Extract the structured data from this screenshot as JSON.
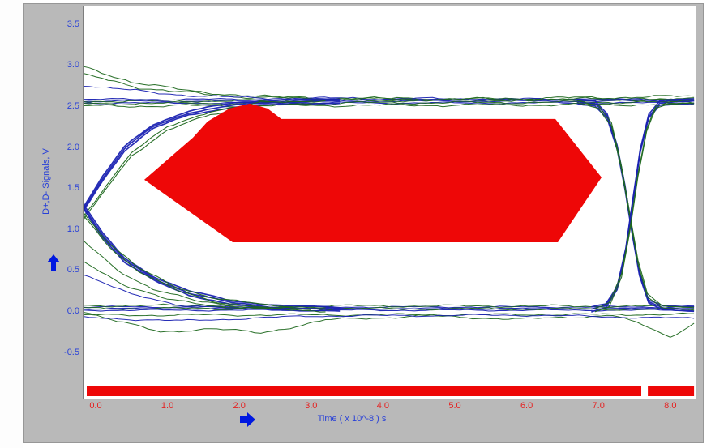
{
  "window": {
    "bg": "#ffffff",
    "panel_bg": "#b9b9b9"
  },
  "chart_data": {
    "type": "eye-diagram",
    "xlabel": "Time  ( x 10^-8 ) s",
    "ylabel": "D+,D- Signals, V",
    "x_tick_labels": [
      "0.0",
      "1.0",
      "2.0",
      "3.0",
      "4.0",
      "5.0",
      "6.0",
      "7.0",
      "8.0"
    ],
    "x_tick_values": [
      0,
      1,
      2,
      3,
      4,
      5,
      6,
      7,
      8
    ],
    "y_tick_labels": [
      "3.5",
      "3.0",
      "2.5",
      "2.0",
      "1.5",
      "1.0",
      "0.5",
      "0.0",
      "-0.5"
    ],
    "y_tick_values": [
      3.5,
      3.0,
      2.5,
      2.0,
      1.5,
      1.0,
      0.5,
      0.0,
      -0.5
    ],
    "xlim": [
      -0.169,
      8.352
    ],
    "ylim": [
      -1.058,
      3.715
    ],
    "x_unit": "x 10^-8 s",
    "y_unit": "V",
    "signal_levels": {
      "high_V": 2.55,
      "low_V": 0.0,
      "crossing_left_V": 1.25,
      "crossing_right_t": 7.4
    },
    "colors": {
      "trace_blue": "#1a22b2",
      "trace_green": "#1d681d",
      "mask": "#ee0707",
      "bar": "#ee0707",
      "tick_blue": "#2840d8",
      "tick_red": "#e62020",
      "arrow": "#0018e0"
    },
    "mask_polygon": [
      [
        0.677,
        1.601
      ],
      [
        1.355,
        2.115
      ],
      [
        1.558,
        2.312
      ],
      [
        1.863,
        2.471
      ],
      [
        2.145,
        2.53
      ],
      [
        2.393,
        2.471
      ],
      [
        2.585,
        2.342
      ],
      [
        6.4,
        2.342
      ],
      [
        7.043,
        1.63
      ],
      [
        6.434,
        0.839
      ],
      [
        1.908,
        0.839
      ]
    ],
    "mask_bar": {
      "v_top": -0.92,
      "v_bottom": -1.039,
      "segments": [
        [
          -0.124,
          7.596
        ],
        [
          7.687,
          8.33
        ]
      ]
    },
    "traces": [
      {
        "color": "blue",
        "w": 1.1,
        "amp": 1.4,
        "seed": 1,
        "copies": 3,
        "spread": 2.2,
        "pts": [
          [
            -0.17,
            2.56
          ],
          [
            8.33,
            2.56
          ]
        ]
      },
      {
        "color": "green",
        "w": 1.0,
        "amp": 2.2,
        "seed": 2,
        "copies": 3,
        "spread": 3.0,
        "pts": [
          [
            -0.17,
            2.53
          ],
          [
            8.33,
            2.55
          ]
        ]
      },
      {
        "color": "green",
        "w": 1.0,
        "amp": 2.6,
        "seed": 3,
        "copies": 1,
        "spread": 0,
        "pts": [
          [
            -0.17,
            2.88
          ],
          [
            0.6,
            2.73
          ],
          [
            1.6,
            2.63
          ],
          [
            3.0,
            2.59
          ],
          [
            8.33,
            2.58
          ]
        ]
      },
      {
        "color": "blue",
        "w": 1.0,
        "amp": 2.2,
        "seed": 4,
        "copies": 1,
        "spread": 0,
        "pts": [
          [
            -0.17,
            2.76
          ],
          [
            0.8,
            2.66
          ],
          [
            2.0,
            2.6
          ],
          [
            8.33,
            2.57
          ]
        ]
      },
      {
        "color": "green",
        "w": 1.0,
        "amp": 2.4,
        "seed": 5,
        "copies": 1,
        "spread": 0,
        "pts": [
          [
            -0.17,
            2.97
          ],
          [
            0.5,
            2.8
          ],
          [
            1.3,
            2.68
          ],
          [
            2.6,
            2.6
          ],
          [
            5.0,
            2.58
          ],
          [
            8.33,
            2.62
          ]
        ]
      },
      {
        "color": "blue",
        "w": 1.1,
        "amp": 1.3,
        "seed": 6,
        "copies": 3,
        "spread": 2.0,
        "pts": [
          [
            -0.17,
            0.03
          ],
          [
            8.33,
            0.03
          ]
        ]
      },
      {
        "color": "green",
        "w": 1.0,
        "amp": 2.0,
        "seed": 7,
        "copies": 2,
        "spread": 3.5,
        "pts": [
          [
            -0.17,
            0.05
          ],
          [
            8.33,
            0.04
          ]
        ]
      },
      {
        "color": "green",
        "w": 1.0,
        "amp": 1.8,
        "seed": 8,
        "copies": 1,
        "spread": 0,
        "pts": [
          [
            -0.17,
            -0.05
          ],
          [
            8.33,
            -0.04
          ]
        ]
      },
      {
        "color": "green",
        "w": 1.0,
        "amp": 2.0,
        "seed": 9,
        "copies": 1,
        "spread": 0,
        "pts": [
          [
            -0.17,
            0.0
          ],
          [
            0.3,
            -0.12
          ],
          [
            0.9,
            -0.26
          ],
          [
            1.6,
            -0.21
          ],
          [
            2.3,
            -0.27
          ],
          [
            3.2,
            -0.11
          ],
          [
            4.5,
            -0.06
          ],
          [
            6.0,
            -0.1
          ],
          [
            7.2,
            -0.05
          ],
          [
            7.7,
            -0.2
          ],
          [
            8.0,
            -0.32
          ],
          [
            8.33,
            -0.14
          ]
        ]
      },
      {
        "color": "blue",
        "w": 1.0,
        "amp": 1.6,
        "seed": 10,
        "copies": 1,
        "spread": 0,
        "pts": [
          [
            -0.17,
            -0.08
          ],
          [
            1.2,
            -0.12
          ],
          [
            3.0,
            -0.06
          ],
          [
            6.0,
            -0.05
          ],
          [
            8.33,
            -0.09
          ]
        ]
      },
      {
        "color": "blue",
        "w": 1.7,
        "amp": 1.1,
        "seed": 11,
        "copies": 3,
        "spread": 2.5,
        "pts": [
          [
            -0.17,
            1.25
          ],
          [
            0.1,
            1.62
          ],
          [
            0.4,
            1.98
          ],
          [
            0.8,
            2.25
          ],
          [
            1.3,
            2.42
          ],
          [
            1.9,
            2.51
          ],
          [
            2.6,
            2.55
          ],
          [
            3.4,
            2.56
          ]
        ]
      },
      {
        "color": "green",
        "w": 1.1,
        "amp": 1.8,
        "seed": 12,
        "copies": 2,
        "spread": 4.0,
        "pts": [
          [
            -0.17,
            1.12
          ],
          [
            0.15,
            1.52
          ],
          [
            0.5,
            1.92
          ],
          [
            1.0,
            2.22
          ],
          [
            1.6,
            2.42
          ],
          [
            2.3,
            2.52
          ],
          [
            3.2,
            2.55
          ]
        ]
      },
      {
        "color": "blue",
        "w": 1.7,
        "amp": 1.1,
        "seed": 13,
        "copies": 3,
        "spread": 2.5,
        "pts": [
          [
            -0.17,
            1.28
          ],
          [
            0.1,
            0.92
          ],
          [
            0.4,
            0.62
          ],
          [
            0.8,
            0.4
          ],
          [
            1.3,
            0.22
          ],
          [
            1.9,
            0.1
          ],
          [
            2.6,
            0.04
          ],
          [
            3.4,
            0.02
          ]
        ]
      },
      {
        "color": "green",
        "w": 1.1,
        "amp": 1.8,
        "seed": 14,
        "copies": 2,
        "spread": 4.0,
        "pts": [
          [
            -0.17,
            1.18
          ],
          [
            0.2,
            0.8
          ],
          [
            0.6,
            0.5
          ],
          [
            1.1,
            0.28
          ],
          [
            1.7,
            0.13
          ],
          [
            2.4,
            0.05
          ],
          [
            3.2,
            0.02
          ]
        ]
      },
      {
        "color": "green",
        "w": 1.0,
        "amp": 1.8,
        "seed": 15,
        "copies": 1,
        "spread": 0,
        "pts": [
          [
            -0.17,
            0.85
          ],
          [
            0.3,
            0.5
          ],
          [
            0.8,
            0.27
          ],
          [
            1.4,
            0.12
          ],
          [
            2.2,
            0.04
          ],
          [
            3.0,
            0.02
          ]
        ]
      },
      {
        "color": "blue",
        "w": 1.0,
        "amp": 1.5,
        "seed": 16,
        "copies": 1,
        "spread": 0,
        "pts": [
          [
            -0.17,
            0.45
          ],
          [
            0.5,
            0.2
          ],
          [
            1.2,
            0.07
          ],
          [
            2.0,
            0.03
          ]
        ]
      },
      {
        "color": "green",
        "w": 1.0,
        "amp": 1.6,
        "seed": 17,
        "copies": 1,
        "spread": 0,
        "pts": [
          [
            -0.17,
            0.6
          ],
          [
            0.4,
            0.32
          ],
          [
            1.0,
            0.14
          ],
          [
            1.8,
            0.05
          ],
          [
            2.6,
            0.02
          ]
        ]
      },
      {
        "color": "blue",
        "w": 1.6,
        "amp": 1.1,
        "seed": 18,
        "copies": 3,
        "spread": 2.5,
        "pts": [
          [
            6.7,
            2.56
          ],
          [
            6.95,
            2.53
          ],
          [
            7.12,
            2.38
          ],
          [
            7.26,
            2.0
          ],
          [
            7.37,
            1.5
          ],
          [
            7.47,
            0.95
          ],
          [
            7.57,
            0.45
          ],
          [
            7.7,
            0.12
          ],
          [
            7.9,
            0.04
          ],
          [
            8.33,
            0.03
          ]
        ]
      },
      {
        "color": "green",
        "w": 1.1,
        "amp": 1.8,
        "seed": 19,
        "copies": 2,
        "spread": 3.5,
        "pts": [
          [
            6.7,
            2.55
          ],
          [
            7.0,
            2.5
          ],
          [
            7.18,
            2.28
          ],
          [
            7.32,
            1.75
          ],
          [
            7.44,
            1.15
          ],
          [
            7.55,
            0.6
          ],
          [
            7.68,
            0.18
          ],
          [
            7.88,
            0.05
          ],
          [
            8.33,
            0.03
          ]
        ]
      },
      {
        "color": "blue",
        "w": 1.6,
        "amp": 1.1,
        "seed": 20,
        "copies": 3,
        "spread": 2.5,
        "pts": [
          [
            6.9,
            0.02
          ],
          [
            7.1,
            0.06
          ],
          [
            7.26,
            0.28
          ],
          [
            7.38,
            0.75
          ],
          [
            7.48,
            1.35
          ],
          [
            7.58,
            1.95
          ],
          [
            7.7,
            2.38
          ],
          [
            7.85,
            2.54
          ],
          [
            8.33,
            2.56
          ]
        ]
      },
      {
        "color": "green",
        "w": 1.1,
        "amp": 1.8,
        "seed": 21,
        "copies": 2,
        "spread": 3.5,
        "pts": [
          [
            6.95,
            0.02
          ],
          [
            7.15,
            0.08
          ],
          [
            7.32,
            0.42
          ],
          [
            7.44,
            1.0
          ],
          [
            7.55,
            1.65
          ],
          [
            7.67,
            2.2
          ],
          [
            7.8,
            2.48
          ],
          [
            8.0,
            2.55
          ],
          [
            8.33,
            2.56
          ]
        ]
      }
    ]
  }
}
